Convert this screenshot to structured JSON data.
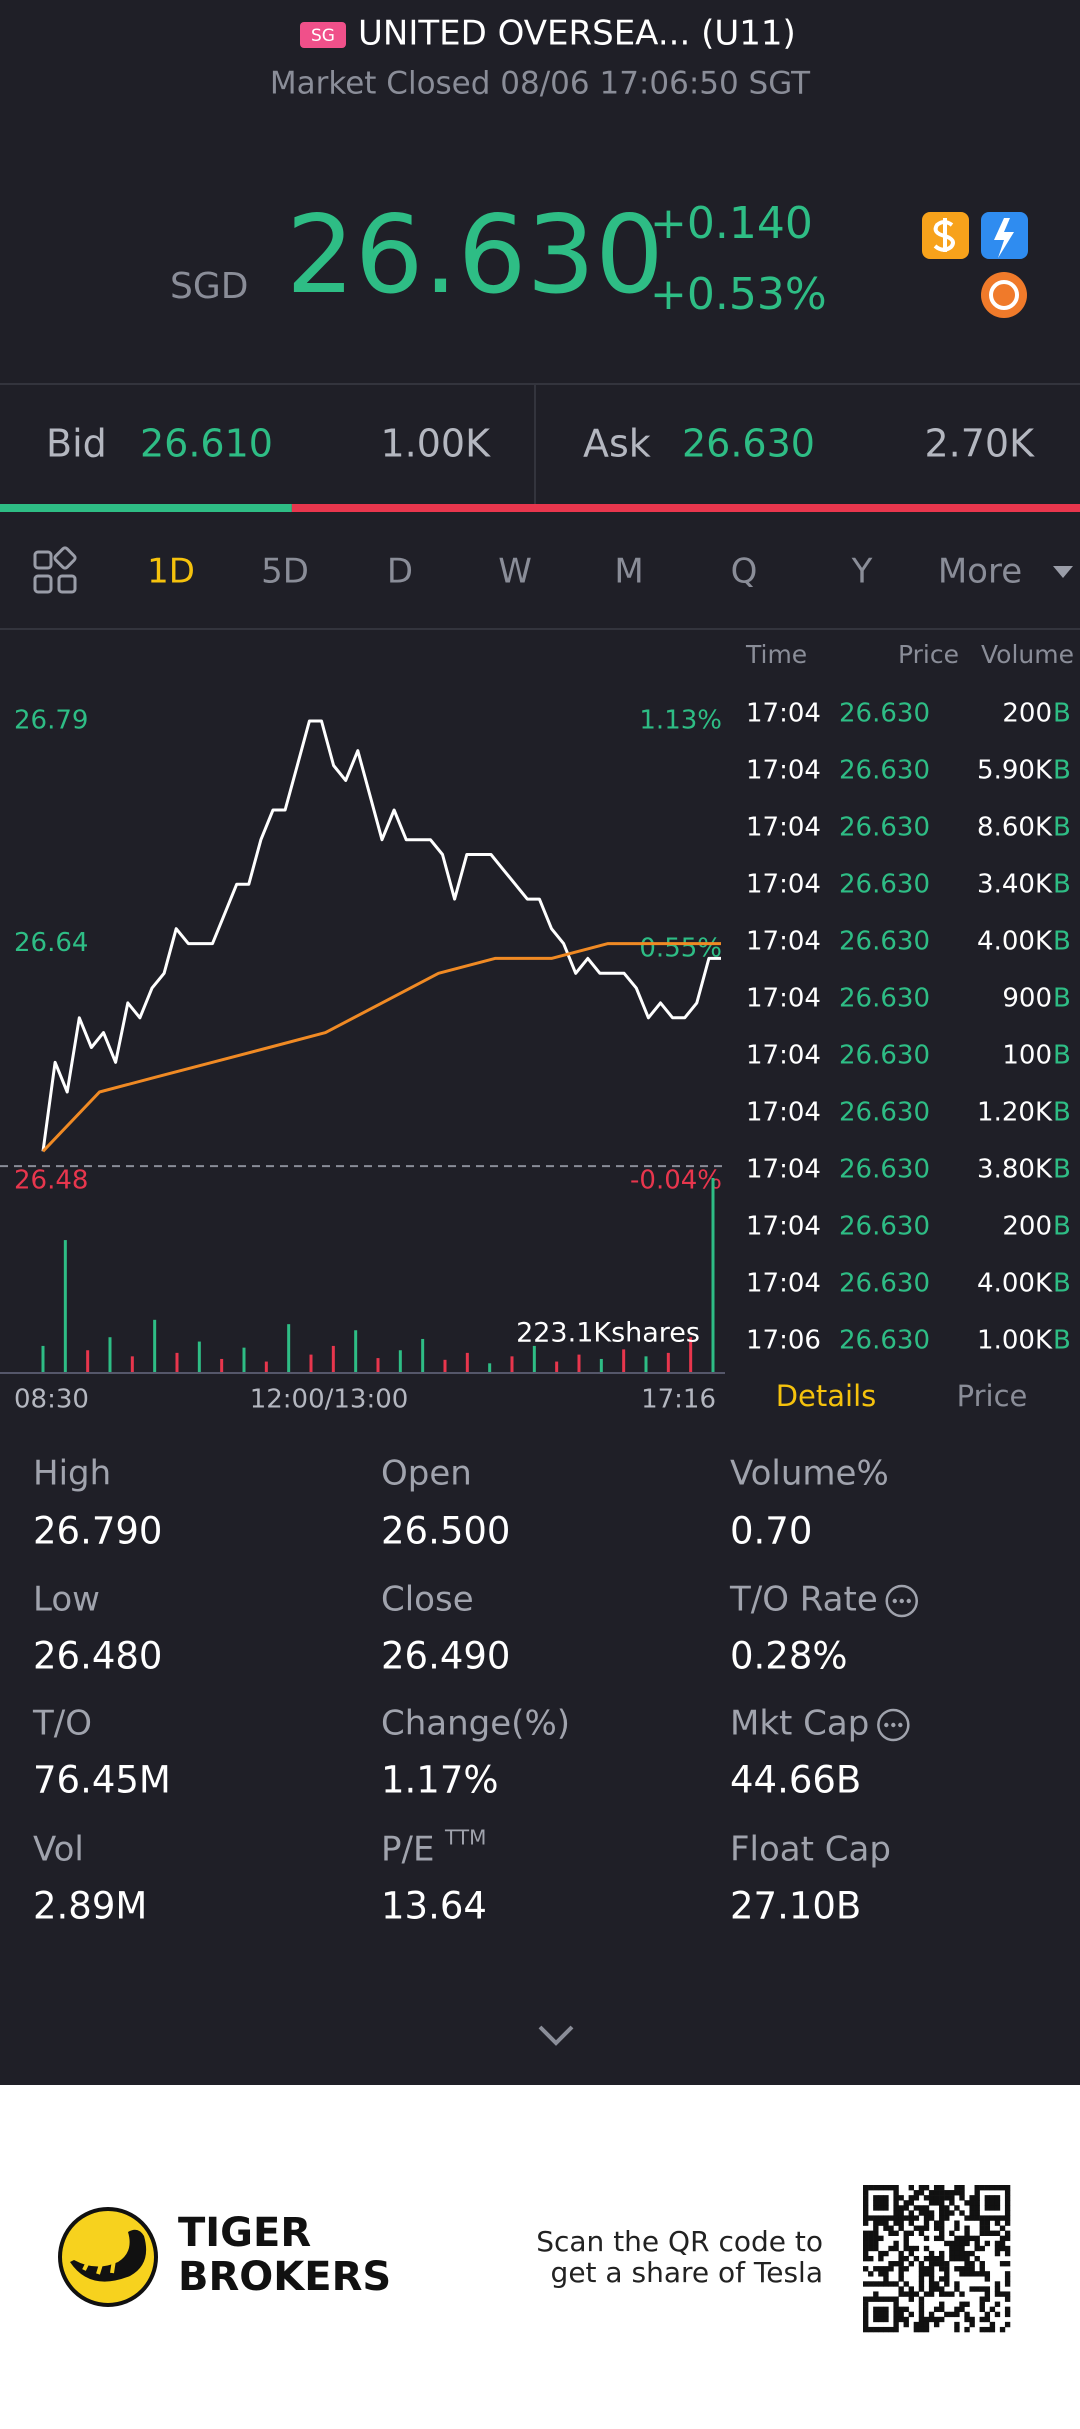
{
  "header": {
    "badge": "SG",
    "title": "UNITED OVERSEA... (U11)",
    "status": "Market Closed 08/06 17:06:50 SGT"
  },
  "quote": {
    "currency": "SGD",
    "price": "26.630",
    "change": "+0.140",
    "change_pct": "+0.53%"
  },
  "bid": {
    "label": "Bid",
    "price": "26.610",
    "size": "1.00K"
  },
  "ask": {
    "label": "Ask",
    "price": "26.630",
    "size": "2.70K"
  },
  "tabs": [
    "1D",
    "5D",
    "D",
    "W",
    "M",
    "Q",
    "Y",
    "More"
  ],
  "selected_tab": 0,
  "intraday": {
    "type": "line",
    "x_labels": [
      "08:30",
      "12:00/13:00",
      "17:16"
    ],
    "ylim": [
      26.48,
      26.79
    ],
    "yticks": [
      26.48,
      26.64,
      26.79
    ],
    "y2lim": [
      -0.04,
      1.13
    ],
    "y2ticks": [
      {
        "value": -0.04,
        "label": "-0.04%"
      },
      {
        "value": 0.55,
        "label": "0.55%"
      },
      {
        "value": 1.13,
        "label": "1.13%"
      }
    ],
    "reference_line": 26.49,
    "series": [
      {
        "color": "#ffffff",
        "values": [
          26.5,
          26.56,
          26.54,
          26.59,
          26.57,
          26.58,
          26.56,
          26.6,
          26.59,
          26.61,
          26.62,
          26.65,
          26.64,
          26.64,
          26.64,
          26.66,
          26.68,
          26.68,
          26.71,
          26.73,
          26.73,
          26.76,
          26.79,
          26.79,
          26.76,
          26.75,
          26.77,
          26.74,
          26.71,
          26.73,
          26.71,
          26.71,
          26.71,
          26.7,
          26.67,
          26.7,
          26.7,
          26.7,
          26.69,
          26.68,
          26.67,
          26.67,
          26.65,
          26.64,
          26.62,
          26.63,
          26.62,
          26.62,
          26.62,
          26.61,
          26.59,
          26.6,
          26.59,
          26.59,
          26.6,
          26.63,
          26.63
        ]
      },
      {
        "color": "#f08a24",
        "values": [
          26.5,
          26.54,
          26.55,
          26.56,
          26.57,
          26.58,
          26.6,
          26.62,
          26.63,
          26.63,
          26.64,
          26.64,
          26.64
        ]
      }
    ],
    "volume": {
      "label": "223.1Kshares",
      "ylim": [
        0,
        223100
      ],
      "values": [
        30000,
        151700,
        25000,
        40000,
        18000,
        60000,
        22000,
        35000,
        15000,
        28000,
        12000,
        55000,
        20000,
        30000,
        48000,
        16000,
        25000,
        38000,
        14000,
        22000,
        10000,
        18000,
        30000,
        12000,
        20000,
        15000,
        26000,
        18000,
        22000,
        40000,
        223100
      ],
      "colors": [
        "#2ebd85",
        "#2ebd85",
        "#e8364d",
        "#2ebd85",
        "#e8364d",
        "#2ebd85",
        "#e8364d",
        "#2ebd85",
        "#e8364d",
        "#2ebd85",
        "#e8364d",
        "#2ebd85",
        "#e8364d",
        "#e8364d",
        "#2ebd85",
        "#e8364d",
        "#2ebd85",
        "#2ebd85",
        "#e8364d",
        "#e8364d",
        "#2ebd85",
        "#e8364d",
        "#2ebd85",
        "#e8364d",
        "#e8364d",
        "#2ebd85",
        "#e8364d",
        "#2ebd85",
        "#e8364d",
        "#e8364d",
        "#2ebd85"
      ]
    }
  },
  "trades": {
    "headers": [
      "Time",
      "Price",
      "Volume"
    ],
    "rows": [
      [
        "17:04",
        "26.630",
        "200",
        "B"
      ],
      [
        "17:04",
        "26.630",
        "5.90K",
        "B"
      ],
      [
        "17:04",
        "26.630",
        "8.60K",
        "B"
      ],
      [
        "17:04",
        "26.630",
        "3.40K",
        "B"
      ],
      [
        "17:04",
        "26.630",
        "4.00K",
        "B"
      ],
      [
        "17:04",
        "26.630",
        "900",
        "B"
      ],
      [
        "17:04",
        "26.630",
        "100",
        "B"
      ],
      [
        "17:04",
        "26.630",
        "1.20K",
        "B"
      ],
      [
        "17:04",
        "26.630",
        "3.80K",
        "B"
      ],
      [
        "17:04",
        "26.630",
        "200",
        "B"
      ],
      [
        "17:04",
        "26.630",
        "4.00K",
        "B"
      ],
      [
        "17:06",
        "26.630",
        "1.00K",
        "B"
      ]
    ]
  },
  "detail_tabs": [
    "Details",
    "Price"
  ],
  "stats": [
    {
      "label": "High",
      "value": "26.790"
    },
    {
      "label": "Open",
      "value": "26.500"
    },
    {
      "label": "Volume%",
      "value": "0.70"
    },
    {
      "label": "Low",
      "value": "26.480"
    },
    {
      "label": "Close",
      "value": "26.490"
    },
    {
      "label": "T/O Rate",
      "value": "0.28%",
      "info": true
    },
    {
      "label": "T/O",
      "value": "76.45M"
    },
    {
      "label": "Change(%)",
      "value": "1.17%"
    },
    {
      "label": "Mkt Cap",
      "value": "44.66B",
      "info": true
    },
    {
      "label": "Vol",
      "value": "2.89M"
    },
    {
      "label": "P/E",
      "sup": "TTM",
      "value": "13.64"
    },
    {
      "label": "Float Cap",
      "value": "27.10B"
    }
  ],
  "footer": {
    "brand": [
      "TIGER",
      "BROKERS"
    ],
    "promo": [
      "Scan the QR code to",
      "get a share of Tesla"
    ]
  }
}
